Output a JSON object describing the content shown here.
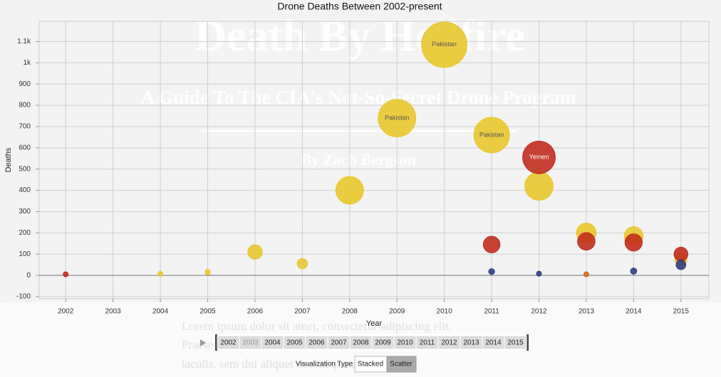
{
  "background": {
    "hero_title": "Death By Hellfire",
    "hero_subtitle": "A Guide To The CIA's Not-So-Secret Drone Program",
    "author": "By Zach Bergson",
    "lorem": [
      "Lorem ipsum dolor sit amet, consectetur adipiscing elit.",
      "Praesent",
      "iaculis, sem dui aliquet nec, at quam lectus quis"
    ]
  },
  "chart_data": {
    "type": "bubble",
    "title": "Drone Deaths Between 2002-present",
    "x_label": "Year",
    "y_label": "Deaths",
    "xlim": [
      2001.44,
      2015.59
    ],
    "xticks": [
      2002,
      2003,
      2004,
      2005,
      2006,
      2007,
      2008,
      2009,
      2010,
      2011,
      2012,
      2013,
      2014,
      2015
    ],
    "ylim": [
      -110,
      1195
    ],
    "yticks": [
      -100,
      0,
      100,
      200,
      300,
      400,
      500,
      600,
      700,
      800,
      900,
      {
        "value": 1000,
        "label": "1k"
      },
      {
        "value": 1100,
        "label": "1.1k"
      }
    ],
    "grid": true,
    "series": [
      {
        "color": "#e8c628",
        "label_color": "#555555",
        "x": [
          2004,
          2005,
          2006,
          2007,
          2008,
          2009,
          2010,
          2011,
          2012,
          2013,
          2014,
          2015
        ],
        "values": [
          7,
          15,
          110,
          55,
          400,
          740,
          1085,
          660,
          420,
          200,
          185,
          75
        ],
        "point_labels": [
          null,
          null,
          null,
          null,
          null,
          "Pakistan",
          "Pakistan",
          "Pakistan",
          null,
          null,
          null,
          null
        ]
      },
      {
        "color": "#c0291a",
        "label_color": "#ffffff",
        "x": [
          2002,
          2011,
          2012,
          2013,
          2014,
          2015
        ],
        "values": [
          5,
          145,
          555,
          160,
          155,
          100
        ],
        "point_labels": [
          null,
          null,
          "Yemen",
          null,
          null,
          null
        ]
      },
      {
        "color": "#2e3a80",
        "x": [
          2011,
          2012,
          2014,
          2015
        ],
        "values": [
          18,
          8,
          20,
          50
        ]
      },
      {
        "color": "#d2691e",
        "x": [
          2013
        ],
        "values": [
          5
        ]
      }
    ]
  },
  "controls": {
    "years": [
      2002,
      2003,
      2004,
      2005,
      2006,
      2007,
      2008,
      2009,
      2010,
      2011,
      2012,
      2013,
      2014,
      2015
    ],
    "type_label": "Visualization Type",
    "buttons": [
      "Stacked",
      "Scatter"
    ]
  }
}
